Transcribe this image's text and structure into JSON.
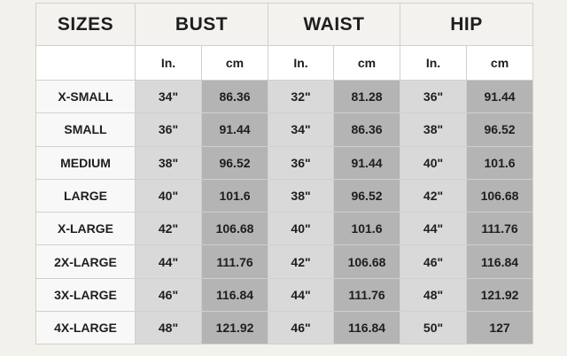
{
  "table": {
    "header": [
      "SIZES",
      "BUST",
      "WAIST",
      "HIP"
    ],
    "subheader": [
      "In.",
      "cm",
      "In.",
      "cm",
      "In.",
      "cm"
    ],
    "rows": [
      [
        "X-SMALL",
        "34\"",
        "86.36",
        "32\"",
        "81.28",
        "36\"",
        "91.44"
      ],
      [
        "SMALL",
        "36\"",
        "91.44",
        "34\"",
        "86.36",
        "38\"",
        "96.52"
      ],
      [
        "MEDIUM",
        "38\"",
        "96.52",
        "36\"",
        "91.44",
        "40\"",
        "101.6"
      ],
      [
        "LARGE",
        "40\"",
        "101.6",
        "38\"",
        "96.52",
        "42\"",
        "106.68"
      ],
      [
        "X-LARGE",
        "42\"",
        "106.68",
        "40\"",
        "101.6",
        "44\"",
        "111.76"
      ],
      [
        "2X-LARGE",
        "44\"",
        "111.76",
        "42\"",
        "106.68",
        "46\"",
        "116.84"
      ],
      [
        "3X-LARGE",
        "46\"",
        "116.84",
        "44\"",
        "111.76",
        "48\"",
        "121.92"
      ],
      [
        "4X-LARGE",
        "48\"",
        "121.92",
        "46\"",
        "116.84",
        "50\"",
        "127"
      ]
    ]
  }
}
